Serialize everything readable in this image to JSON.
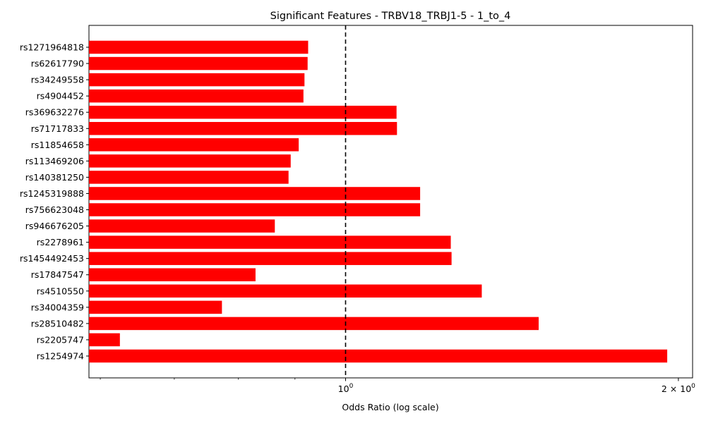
{
  "chart_data": {
    "type": "bar",
    "orientation": "horizontal",
    "title": "Significant Features - TRBV18_TRBJ1-5 - 1_to_4",
    "xlabel": "Odds Ratio (log scale)",
    "ylabel": "",
    "x_scale": "log",
    "xlim": [
      0.586,
      2.06
    ],
    "major_ticks": [
      {
        "value": 1,
        "label_base": "10",
        "label_exp": "0",
        "label_coef": ""
      },
      {
        "value": 2,
        "label_base": "10",
        "label_exp": "0",
        "label_coef": "2 × "
      }
    ],
    "minor_ticks": [
      0.6,
      0.7,
      0.8,
      0.9,
      3,
      4
    ],
    "reference_line": {
      "value": 1,
      "style": "dashed",
      "color": "#000000"
    },
    "bar_color": "#ff0000",
    "categories": [
      "rs1271964818",
      "rs62617790",
      "rs34249558",
      "rs4904452",
      "rs369632276",
      "rs71717833",
      "rs11854658",
      "rs113469206",
      "rs140381250",
      "rs1245319888",
      "rs756623048",
      "rs946676205",
      "rs2278961",
      "rs1454492453",
      "rs17847547",
      "rs4510550",
      "rs34004359",
      "rs28510482",
      "rs2205747",
      "rs1254974"
    ],
    "values": [
      0.925,
      0.924,
      0.918,
      0.916,
      1.112,
      1.113,
      0.907,
      0.892,
      0.888,
      1.168,
      1.168,
      0.863,
      1.245,
      1.247,
      0.829,
      1.328,
      0.773,
      1.495,
      0.625,
      1.954
    ]
  }
}
